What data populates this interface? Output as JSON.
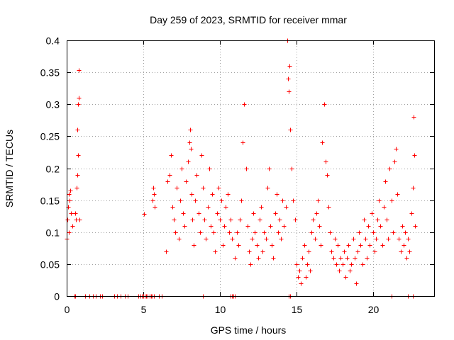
{
  "chart_data": {
    "type": "scatter",
    "title": "Day 259 of 2023, SRMTID for receiver mmar",
    "xlabel": "GPS time / hours",
    "ylabel": "SRMTID / TECUs",
    "xlim": [
      0,
      24
    ],
    "ylim": [
      0,
      0.4
    ],
    "xticks": [
      0,
      5,
      10,
      15,
      20
    ],
    "xtick_labels": [
      "0",
      "5",
      "10",
      "15",
      "20"
    ],
    "yticks": [
      0,
      0.05,
      0.1,
      0.15,
      0.2,
      0.25,
      0.3,
      0.35,
      0.4
    ],
    "ytick_labels": [
      "0",
      "0.05",
      "0.1",
      "0.15",
      "0.2",
      "0.25",
      "0.3",
      "0.35",
      "0.4"
    ],
    "grid": true,
    "marker": "+",
    "marker_color": "#ff0000",
    "series": [
      {
        "name": "SRMTID",
        "x": [
          0.0,
          0.05,
          0.1,
          0.12,
          0.15,
          0.2,
          0.25,
          0.3,
          0.35,
          0.55,
          0.6,
          0.65,
          0.68,
          0.7,
          0.72,
          0.75,
          0.78,
          0.8,
          0.85,
          5.05,
          5.6,
          5.65,
          5.7,
          5.75,
          6.5,
          6.6,
          6.7,
          6.8,
          6.9,
          7.0,
          7.1,
          7.2,
          7.3,
          7.4,
          7.5,
          7.6,
          7.7,
          7.8,
          7.9,
          8.0,
          8.05,
          8.1,
          8.15,
          8.2,
          8.3,
          8.4,
          8.5,
          8.6,
          8.7,
          8.8,
          8.9,
          9.0,
          9.1,
          9.2,
          9.3,
          9.4,
          9.5,
          9.6,
          9.7,
          9.8,
          9.9,
          10.0,
          10.1,
          10.2,
          10.3,
          10.4,
          10.5,
          10.6,
          10.7,
          10.8,
          11.0,
          11.1,
          11.2,
          11.3,
          11.4,
          11.5,
          11.6,
          11.7,
          11.8,
          11.9,
          12.0,
          12.1,
          12.2,
          12.3,
          12.4,
          12.5,
          12.6,
          12.7,
          12.8,
          12.9,
          13.0,
          13.1,
          13.2,
          13.3,
          13.4,
          13.5,
          13.6,
          13.7,
          13.8,
          13.9,
          14.0,
          14.1,
          14.2,
          14.3,
          14.4,
          14.45,
          14.5,
          14.55,
          14.6,
          14.7,
          14.8,
          14.9,
          15.0,
          15.1,
          15.2,
          15.3,
          15.4,
          15.5,
          15.6,
          15.7,
          15.8,
          15.9,
          16.0,
          16.1,
          16.2,
          16.3,
          16.4,
          16.5,
          16.6,
          16.7,
          16.8,
          16.9,
          17.0,
          17.1,
          17.2,
          17.3,
          17.4,
          17.5,
          17.6,
          17.7,
          17.8,
          17.9,
          18.0,
          18.1,
          18.2,
          18.3,
          18.4,
          18.5,
          18.6,
          18.7,
          18.8,
          18.9,
          19.0,
          19.1,
          19.2,
          19.3,
          19.4,
          19.5,
          19.6,
          19.7,
          19.8,
          19.9,
          20.0,
          20.1,
          20.2,
          20.3,
          20.4,
          20.5,
          20.6,
          20.7,
          20.8,
          20.9,
          21.0,
          21.1,
          21.2,
          21.3,
          21.4,
          21.5,
          21.6,
          21.7,
          21.8,
          21.9,
          22.0,
          22.1,
          22.2,
          22.3,
          22.4,
          22.5,
          22.6,
          22.65,
          22.7,
          22.75
        ],
        "y": [
          0.09,
          0.12,
          0.14,
          0.1,
          0.16,
          0.15,
          0.165,
          0.13,
          0.11,
          0.13,
          0.12,
          0.17,
          0.26,
          0.19,
          0.22,
          0.3,
          0.31,
          0.353,
          0.12,
          0.128,
          0.15,
          0.17,
          0.16,
          0.14,
          0.07,
          0.18,
          0.19,
          0.22,
          0.14,
          0.12,
          0.1,
          0.17,
          0.09,
          0.15,
          0.2,
          0.13,
          0.11,
          0.18,
          0.21,
          0.24,
          0.26,
          0.23,
          0.16,
          0.12,
          0.08,
          0.15,
          0.19,
          0.13,
          0.1,
          0.22,
          0.17,
          0.12,
          0.09,
          0.14,
          0.2,
          0.11,
          0.16,
          0.1,
          0.07,
          0.13,
          0.17,
          0.12,
          0.15,
          0.08,
          0.11,
          0.14,
          0.16,
          0.1,
          0.12,
          0.09,
          0.06,
          0.1,
          0.08,
          0.12,
          0.15,
          0.24,
          0.3,
          0.2,
          0.11,
          0.07,
          0.05,
          0.09,
          0.13,
          0.1,
          0.08,
          0.06,
          0.12,
          0.14,
          0.07,
          0.1,
          0.09,
          0.17,
          0.2,
          0.11,
          0.08,
          0.06,
          0.13,
          0.16,
          0.1,
          0.12,
          0.09,
          0.15,
          0.11,
          0.14,
          0.4,
          0.34,
          0.32,
          0.36,
          0.26,
          0.2,
          0.15,
          0.12,
          0.05,
          0.03,
          0.04,
          0.02,
          0.06,
          0.08,
          0.03,
          0.05,
          0.07,
          0.04,
          0.1,
          0.12,
          0.09,
          0.13,
          0.15,
          0.11,
          0.08,
          0.24,
          0.3,
          0.21,
          0.19,
          0.14,
          0.1,
          0.07,
          0.06,
          0.09,
          0.05,
          0.08,
          0.04,
          0.06,
          0.05,
          0.07,
          0.03,
          0.06,
          0.08,
          0.04,
          0.05,
          0.09,
          0.06,
          0.02,
          0.07,
          0.1,
          0.08,
          0.05,
          0.12,
          0.09,
          0.06,
          0.11,
          0.08,
          0.13,
          0.1,
          0.07,
          0.09,
          0.12,
          0.15,
          0.11,
          0.08,
          0.14,
          0.18,
          0.12,
          0.09,
          0.2,
          0.15,
          0.1,
          0.21,
          0.23,
          0.16,
          0.09,
          0.07,
          0.11,
          0.08,
          0.1,
          0.06,
          0.09,
          0.07,
          0.13,
          0.17,
          0.28,
          0.22,
          0.11
        ],
        "zero_x": [
          0.5,
          0.55,
          1.2,
          1.5,
          1.7,
          1.9,
          2.2,
          2.3,
          3.1,
          3.3,
          3.5,
          3.8,
          4.0,
          4.7,
          4.8,
          4.9,
          5.0,
          5.1,
          5.2,
          5.3,
          5.4,
          5.5,
          5.6,
          5.7,
          6.0,
          6.2,
          8.9,
          10.7,
          10.8,
          10.9,
          11.0,
          14.5,
          14.6,
          21.2,
          22.3,
          22.6
        ]
      }
    ]
  }
}
